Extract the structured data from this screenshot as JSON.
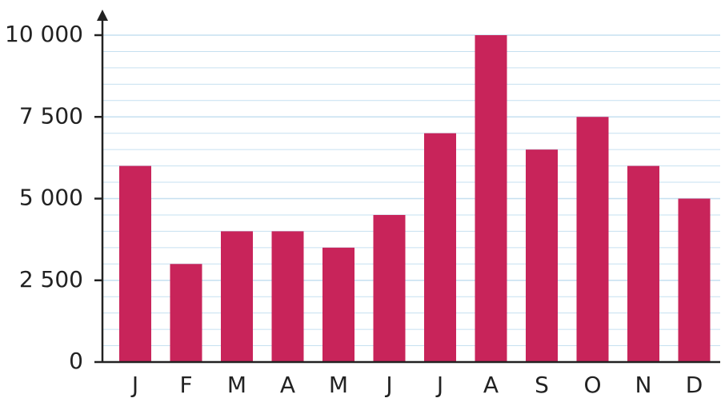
{
  "chart_data": {
    "type": "bar",
    "categories": [
      "J",
      "F",
      "M",
      "A",
      "M",
      "J",
      "J",
      "A",
      "S",
      "O",
      "N",
      "D"
    ],
    "values": [
      6000,
      3000,
      4000,
      4000,
      3500,
      4500,
      7000,
      10000,
      6500,
      7500,
      6000,
      5000
    ],
    "color": "#c8245a",
    "ylim": [
      0,
      10000
    ],
    "yticks": [
      0,
      {
        "value": 2500,
        "label": "2 500"
      },
      {
        "value": 5000,
        "label": "5 000"
      },
      {
        "value": 7500,
        "label": "7 500"
      },
      {
        "value": 10000,
        "label": "10 000"
      }
    ],
    "minor_yticks": [
      500,
      1000,
      1500,
      2000,
      3000,
      3500,
      4000,
      4500,
      5500,
      6000,
      6500,
      7000,
      8000,
      8500,
      9000,
      9500
    ],
    "grid": true,
    "grid_color": "#c6e0f0"
  }
}
